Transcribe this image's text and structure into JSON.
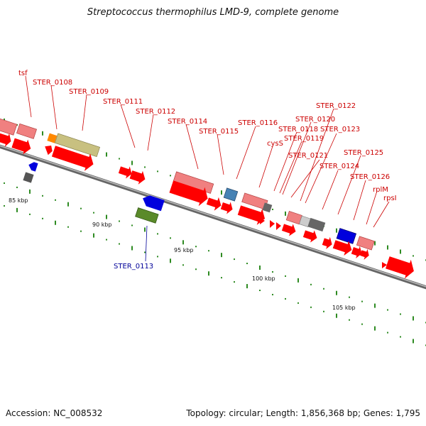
{
  "title": "Streptococcus thermophilus LMD-9, complete genome",
  "footer": {
    "accession": "Accession: NC_008532",
    "summary": "Topology: circular; Length: 1,856,368 bp; Genes: 1,795"
  },
  "scale_labels": [
    "85 kbp",
    "90 kbp",
    "95 kbp",
    "100 kbp",
    "105 kbp"
  ],
  "gene_labels": {
    "tsf": "tsf",
    "STER_0108": "STER_0108",
    "STER_0109": "STER_0109",
    "STER_0111": "STER_0111",
    "STER_0112": "STER_0112",
    "STER_0113": "STER_0113",
    "STER_0114": "STER_0114",
    "STER_0115": "STER_0115",
    "STER_0116": "STER_0116",
    "cysS": "cysS",
    "STER_0118": "STER_0118",
    "STER_0119": "STER_0119",
    "STER_0120": "STER_0120",
    "STER_0121": "STER_0121",
    "STER_0122": "STER_0122",
    "STER_0123": "STER_0123",
    "STER_0124": "STER_0124",
    "STER_0125": "STER_0125",
    "STER_0126": "STER_0126",
    "rplM": "rplM",
    "rpsI": "rpsI"
  },
  "colors": {
    "cds_forward": "#ff0000",
    "cds_light": "#f08080",
    "reverse_blue": "#0000dd",
    "label_red": "#cc0000",
    "label_blue": "#000099",
    "tick_green": "#2e8b22",
    "backbone": "#888888",
    "olive": "#c8c080",
    "green_gene": "#5a8a2a",
    "orange": "#ff8800",
    "steel_blue": "#4682b4",
    "grey_gene": "#666666"
  }
}
